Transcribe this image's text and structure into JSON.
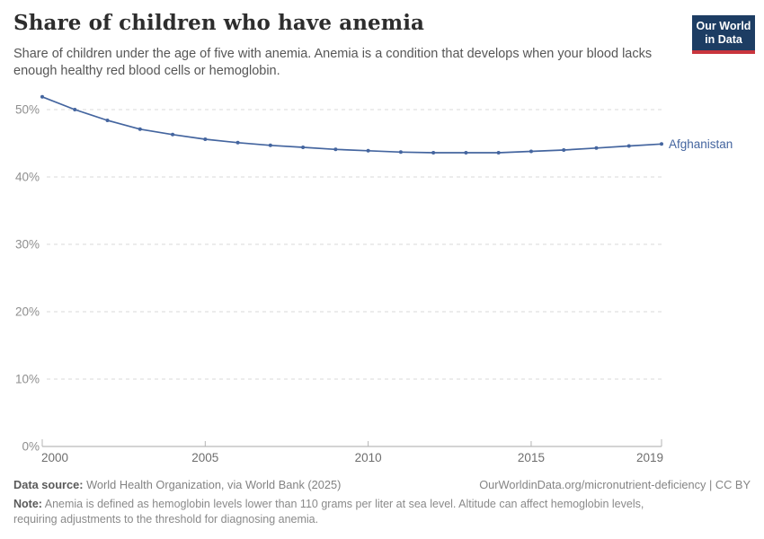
{
  "header": {
    "title": "Share of children who have anemia",
    "subtitle": "Share of children under the age of five with anemia. Anemia is a condition that develops when your blood lacks enough healthy red blood cells or hemoglobin.",
    "logo": {
      "line1": "Our World",
      "line2": "in Data",
      "bg": "#1d3d63",
      "accent": "#c9353d"
    }
  },
  "chart_data": {
    "type": "line",
    "title": "Share of children who have anemia",
    "x": [
      2000,
      2001,
      2002,
      2003,
      2004,
      2005,
      2006,
      2007,
      2008,
      2009,
      2010,
      2011,
      2012,
      2013,
      2014,
      2015,
      2016,
      2017,
      2018,
      2019
    ],
    "series": [
      {
        "name": "Afghanistan",
        "color": "#44659f",
        "values": [
          51.9,
          50.0,
          48.4,
          47.1,
          46.3,
          45.6,
          45.1,
          44.7,
          44.4,
          44.1,
          43.9,
          43.7,
          43.6,
          43.6,
          43.6,
          43.8,
          44.0,
          44.3,
          44.6,
          44.9
        ]
      }
    ],
    "x_ticks": [
      2000,
      2005,
      2010,
      2015,
      2019
    ],
    "y_ticks": [
      0,
      10,
      20,
      30,
      40,
      50
    ],
    "y_tick_suffix": "%",
    "xlim": [
      2000,
      2019
    ],
    "ylim": [
      0,
      53.6
    ],
    "grid": "horizontal-dashed",
    "legend": "series-end-label",
    "colors": {
      "grid": "#d8d8d8",
      "axis": "#a8a8a8",
      "tick": "#b5b5b5",
      "y_label": "#8f8f8f",
      "x_label": "#6e6e6e"
    }
  },
  "footer": {
    "datasource_label": "Data source:",
    "datasource_text": " World Health Organization, via World Bank (2025)",
    "link": "OurWorldinData.org/micronutrient-deficiency | CC BY",
    "note_label": "Note:",
    "note_text": " Anemia is defined as hemoglobin levels lower than 110 grams per liter at sea level. Altitude can affect hemoglobin levels, requiring adjustments to the threshold for diagnosing anemia."
  }
}
